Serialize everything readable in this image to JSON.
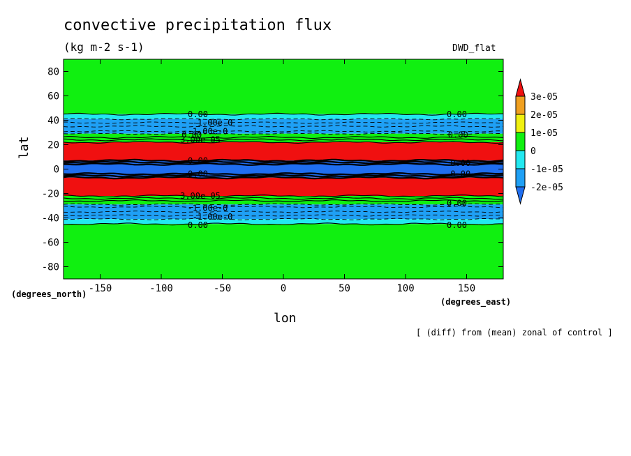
{
  "header": {
    "title": "convective precipitation flux",
    "units": "(kg m-2 s-1)",
    "dataset": "DWD_flat",
    "note": "[ (diff) from (mean) zonal of control ]"
  },
  "chart_data": {
    "type": "heatmap",
    "xlabel": "lon",
    "ylabel": "lat",
    "x_units": "(degrees_east)",
    "y_units": "(degrees_north)",
    "xlim": [
      -180,
      180
    ],
    "ylim": [
      -90,
      90
    ],
    "xticks": [
      -150,
      -100,
      -50,
      0,
      50,
      100,
      150
    ],
    "yticks": [
      80,
      60,
      40,
      20,
      0,
      -20,
      -40,
      -60,
      -80
    ],
    "xtick_labels": [
      "-150",
      "-100",
      "-50",
      "0",
      "50",
      "100",
      "150"
    ],
    "ytick_labels": [
      "80",
      "60",
      "40",
      "20",
      "0",
      "-20",
      "-40",
      "-60",
      "-80"
    ],
    "levels": [
      -2e-05,
      -1e-05,
      0,
      1e-05,
      2e-05,
      3e-05
    ],
    "colorbar_labels": [
      "3e-05",
      "2e-05",
      "1e-05",
      "0",
      "-1e-05",
      "-2e-05"
    ],
    "colors": {
      "below_-2e-05": "#1f6ef0",
      "-2e-05_to_-1e-05": "#1fa0f5",
      "-1e-05_to_0": "#22e8f0",
      "0_to_1e-05": "#10f010",
      "1e-05_to_2e-05": "#f0f010",
      "2e-05_to_3e-05": "#f0a020",
      "above_3e-05": "#f01010"
    },
    "bands": [
      {
        "lat_from": 90,
        "lat_to": 45,
        "value_class": "0_to_1e-05"
      },
      {
        "lat_from": 45,
        "lat_to": 41,
        "value_class": "-1e-05_to_0"
      },
      {
        "lat_from": 41,
        "lat_to": 29,
        "value_class": "-2e-05_to_-1e-05"
      },
      {
        "lat_from": 29,
        "lat_to": 22,
        "value_class": "0_to_1e-05"
      },
      {
        "lat_from": 22,
        "lat_to": 7,
        "value_class": "above_3e-05"
      },
      {
        "lat_from": 7,
        "lat_to": -7,
        "value_class": "below_-2e-05"
      },
      {
        "lat_from": -7,
        "lat_to": -22,
        "value_class": "above_3e-05"
      },
      {
        "lat_from": -22,
        "lat_to": -29,
        "value_class": "0_to_1e-05"
      },
      {
        "lat_from": -29,
        "lat_to": -41,
        "value_class": "-2e-05_to_-1e-05"
      },
      {
        "lat_from": -41,
        "lat_to": -45,
        "value_class": "-1e-05_to_0"
      },
      {
        "lat_from": -45,
        "lat_to": -90,
        "value_class": "0_to_1e-05"
      }
    ],
    "contour_labels": [
      {
        "text": "0.00",
        "lon": -70,
        "lat": 45
      },
      {
        "text": "0.00",
        "lon": 142,
        "lat": 45
      },
      {
        "text": "-1.00e-0",
        "lon": -58,
        "lat": 38
      },
      {
        "text": "-1.00e-0",
        "lon": -62,
        "lat": 31
      },
      {
        "text": "0.00",
        "lon": -75,
        "lat": 28
      },
      {
        "text": "3.00e-05",
        "lon": -68,
        "lat": 24
      },
      {
        "text": "0.00",
        "lon": 143,
        "lat": 28
      },
      {
        "text": "0.00",
        "lon": -70,
        "lat": 7
      },
      {
        "text": "0.00",
        "lon": 145,
        "lat": 5
      },
      {
        "text": "0.00",
        "lon": -70,
        "lat": -4
      },
      {
        "text": "0.00",
        "lon": 145,
        "lat": -4
      },
      {
        "text": "3.00e-05",
        "lon": -68,
        "lat": -22
      },
      {
        "text": "0.00",
        "lon": 142,
        "lat": -28
      },
      {
        "text": "-1.00e-0",
        "lon": -62,
        "lat": -32
      },
      {
        "text": "-1.00e-0",
        "lon": -58,
        "lat": -39
      },
      {
        "text": "0.00",
        "lon": -70,
        "lat": -46
      },
      {
        "text": "0.00",
        "lon": 142,
        "lat": -46
      }
    ]
  }
}
